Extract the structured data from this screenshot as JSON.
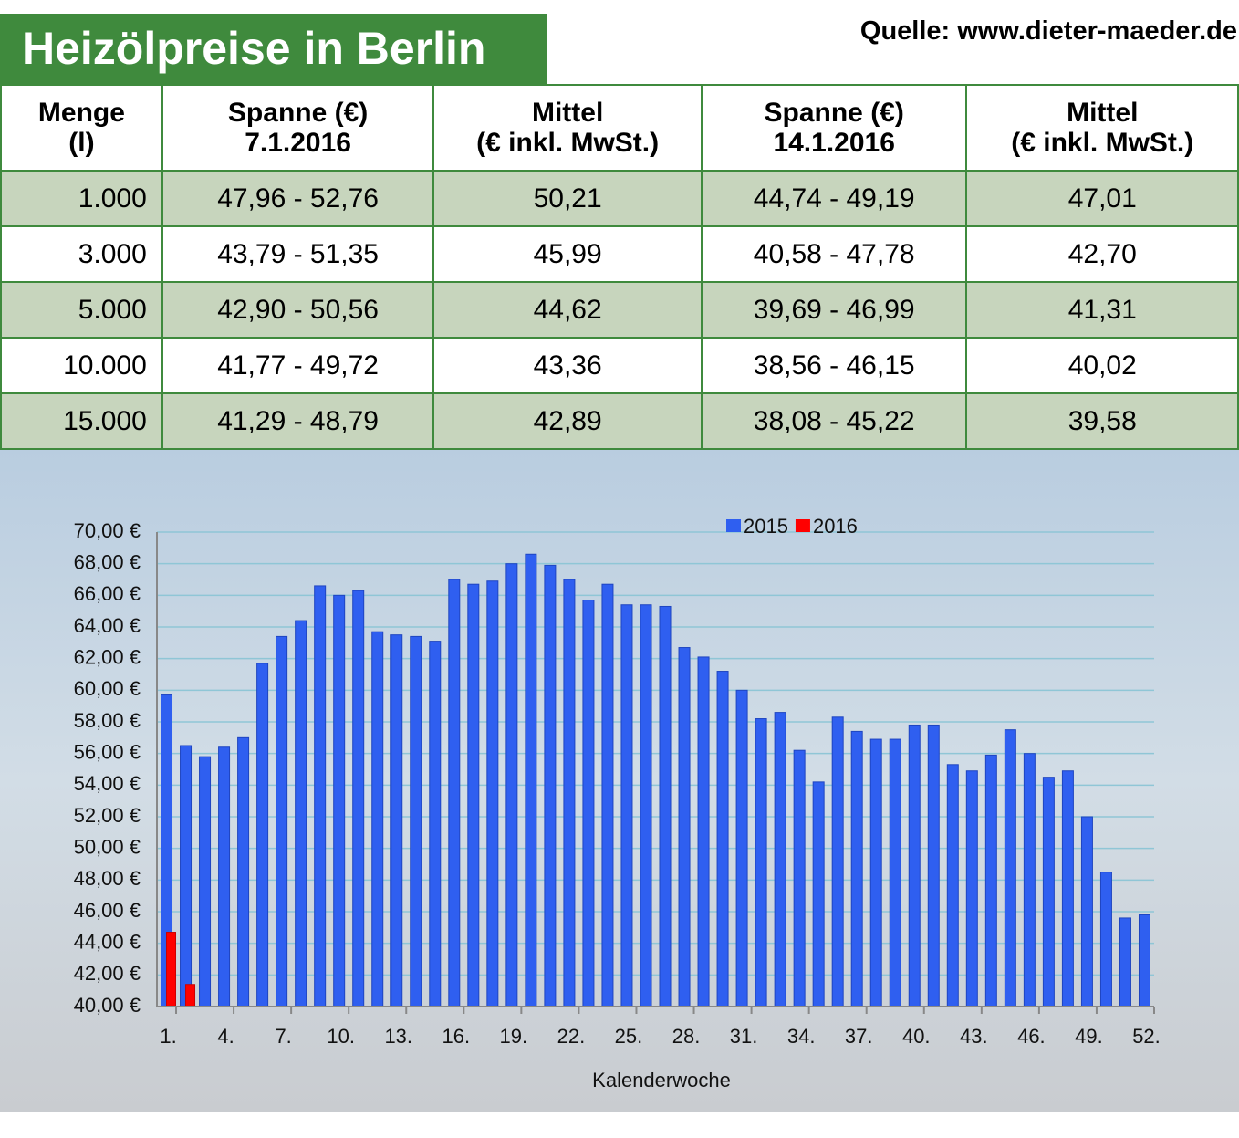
{
  "header": {
    "title": "Heizölpreise in Berlin",
    "source": "Quelle: www.dieter-maeder.de"
  },
  "table": {
    "columns": [
      [
        "Menge",
        "(l)"
      ],
      [
        "Spanne (€)",
        "7.1.2016"
      ],
      [
        "Mittel",
        "(€ inkl. MwSt.)"
      ],
      [
        "Spanne (€)",
        "14.1.2016"
      ],
      [
        "Mittel",
        "(€ inkl. MwSt.)"
      ]
    ],
    "rows": [
      [
        "1.000",
        "47,96 - 52,76",
        "50,21",
        "44,74 - 49,19",
        "47,01"
      ],
      [
        "3.000",
        "43,79 - 51,35",
        "45,99",
        "40,58 - 47,78",
        "42,70"
      ],
      [
        "5.000",
        "42,90 - 50,56",
        "44,62",
        "39,69 - 46,99",
        "41,31"
      ],
      [
        "10.000",
        "41,77 - 49,72",
        "43,36",
        "38,56 - 46,15",
        "40,02"
      ],
      [
        "15.000",
        "41,29 - 48,79",
        "42,89",
        "38,08 - 45,22",
        "39,58"
      ]
    ]
  },
  "chart_data": {
    "type": "bar",
    "xlabel": "Kalenderwoche",
    "categories": [
      "1.",
      null,
      null,
      "4.",
      null,
      null,
      "7.",
      null,
      null,
      "10.",
      null,
      null,
      "13.",
      null,
      null,
      "16.",
      null,
      null,
      "19.",
      null,
      null,
      "22.",
      null,
      null,
      "25.",
      null,
      null,
      "28.",
      null,
      null,
      "31.",
      null,
      null,
      "34.",
      null,
      null,
      "37.",
      null,
      null,
      "40.",
      null,
      null,
      "43.",
      null,
      null,
      "46.",
      null,
      null,
      "49.",
      null,
      null,
      "52."
    ],
    "series": [
      {
        "name": "2015",
        "color": "#2f5ff0",
        "values": [
          59.7,
          56.5,
          55.8,
          56.4,
          57.0,
          61.7,
          63.4,
          64.4,
          66.6,
          66.0,
          66.3,
          63.7,
          63.5,
          63.4,
          63.1,
          67.0,
          66.7,
          66.9,
          68.0,
          68.6,
          67.9,
          67.0,
          65.7,
          66.7,
          65.4,
          65.4,
          65.3,
          62.7,
          62.1,
          61.2,
          60.0,
          58.2,
          58.6,
          56.2,
          54.2,
          58.3,
          57.4,
          56.9,
          56.9,
          57.8,
          57.8,
          55.3,
          54.9,
          55.9,
          57.5,
          56.0,
          54.5,
          54.9,
          52.0,
          48.5,
          45.6,
          45.8
        ]
      },
      {
        "name": "2016",
        "color": "#ff0000",
        "values": [
          44.7,
          41.4,
          null,
          null,
          null,
          null,
          null,
          null,
          null,
          null,
          null,
          null,
          null,
          null,
          null,
          null,
          null,
          null,
          null,
          null,
          null,
          null,
          null,
          null,
          null,
          null,
          null,
          null,
          null,
          null,
          null,
          null,
          null,
          null,
          null,
          null,
          null,
          null,
          null,
          null,
          null,
          null,
          null,
          null,
          null,
          null,
          null,
          null,
          null,
          null,
          null,
          null
        ]
      }
    ],
    "ylim": [
      40,
      70
    ],
    "yticks": [
      {
        "value": 40,
        "label": "40,00 €"
      },
      {
        "value": 42,
        "label": "42,00 €"
      },
      {
        "value": 44,
        "label": "44,00 €"
      },
      {
        "value": 46,
        "label": "46,00 €"
      },
      {
        "value": 48,
        "label": "48,00 €"
      },
      {
        "value": 50,
        "label": "50,00 €"
      },
      {
        "value": 52,
        "label": "52,00 €"
      },
      {
        "value": 54,
        "label": "54,00 €"
      },
      {
        "value": 56,
        "label": "56,00 €"
      },
      {
        "value": 58,
        "label": "58,00 €"
      },
      {
        "value": 60,
        "label": "60,00 €"
      },
      {
        "value": 62,
        "label": "62,00 €"
      },
      {
        "value": 64,
        "label": "64,00 €"
      },
      {
        "value": 66,
        "label": "66,00 €"
      },
      {
        "value": 68,
        "label": "68,00 €"
      },
      {
        "value": 70,
        "label": "70,00 €"
      }
    ],
    "grid": true,
    "legend": "top"
  }
}
